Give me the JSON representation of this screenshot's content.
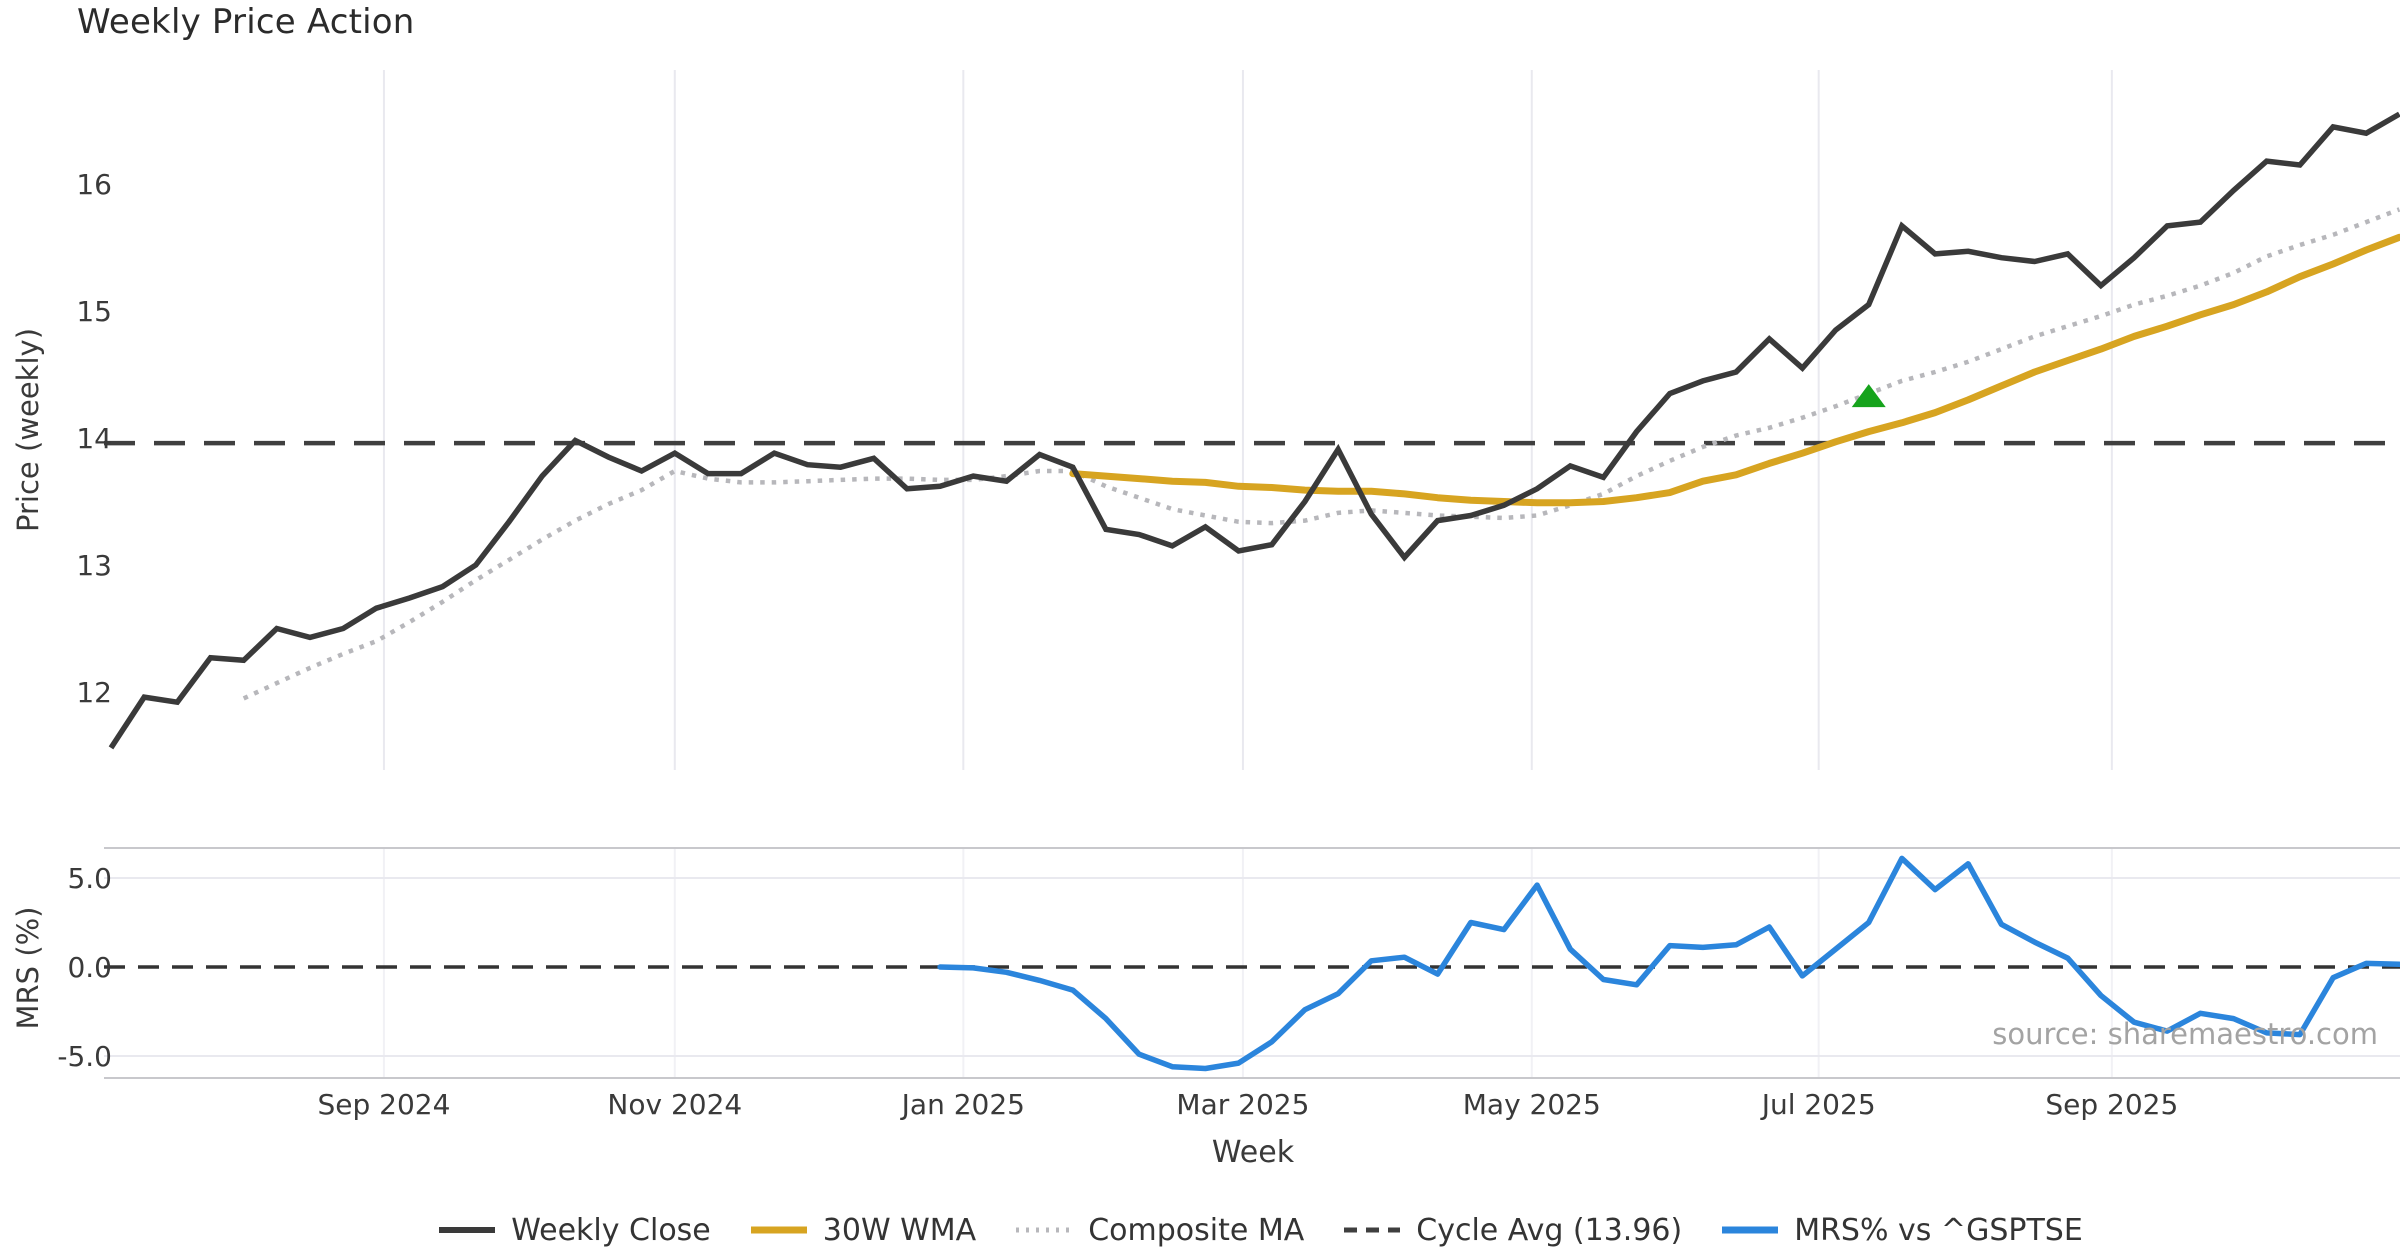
{
  "title": "Weekly Price Action",
  "source_note": "source: sharemaestro.com",
  "colors": {
    "weekly_close": "#3a3a3a",
    "wma_30w": "#d7a421",
    "composite_ma": "#b7b7bb",
    "cycle_avg": "#3f3f3f",
    "mrs": "#2b85dc",
    "signal_marker": "#16a31c",
    "grid": "#e9e9ef",
    "grid_faint": "#f1f1f5",
    "panel_border": "#c8c8cc",
    "tick_text": "#3a3a3a",
    "source_text": "#a3a3a3"
  },
  "axes": {
    "price_axis_label": "Price (weekly)",
    "mrs_axis_label": "MRS (%)",
    "x_axis_label": "Week",
    "price_ticks": [
      {
        "label": "16",
        "value": 16
      },
      {
        "label": "15",
        "value": 15
      },
      {
        "label": "14",
        "value": 14
      },
      {
        "label": "13",
        "value": 13
      },
      {
        "label": "12",
        "value": 12
      }
    ],
    "mrs_ticks": [
      {
        "label": "5.0",
        "value": 5
      },
      {
        "label": "0.0",
        "value": 0
      },
      {
        "label": "-5.0",
        "value": -5
      }
    ],
    "x_ticks": [
      {
        "label": "Sep 2024",
        "week": 8.23
      },
      {
        "label": "Nov 2024",
        "week": 17.0
      },
      {
        "label": "Jan 2025",
        "week": 25.7
      },
      {
        "label": "Mar 2025",
        "week": 34.13
      },
      {
        "label": "May 2025",
        "week": 42.84
      },
      {
        "label": "Jul 2025",
        "week": 51.49
      },
      {
        "label": "Sep 2025",
        "week": 60.33
      }
    ]
  },
  "legend": {
    "items": [
      {
        "label": "Weekly Close",
        "series": "weekly_close",
        "style": "solid"
      },
      {
        "label": "30W WMA",
        "series": "wma_30w",
        "style": "solid"
      },
      {
        "label": "Composite MA",
        "series": "composite_ma",
        "style": "dotted"
      },
      {
        "label": "Cycle Avg (13.96)",
        "series": "cycle_avg",
        "style": "dashed"
      },
      {
        "label": "MRS% vs ^GSPTSE",
        "series": "mrs",
        "style": "solid"
      }
    ]
  },
  "chart_data": {
    "type": "line",
    "x_unit": "week index (week 0 = first plotted week, ticks every 2 months)",
    "panels": [
      {
        "name": "price",
        "ylabel": "Price (weekly)",
        "ylim": [
          11.39,
          16.86
        ],
        "grid": "vertical-only",
        "cycle_avg": 13.96,
        "marker": {
          "shape": "triangle-up",
          "week": 53,
          "price": 14.33
        },
        "series": [
          {
            "name": "Weekly Close",
            "style": "solid",
            "start_week": 0,
            "values": [
              11.56,
              11.96,
              11.92,
              12.27,
              12.25,
              12.5,
              12.43,
              12.5,
              12.66,
              12.74,
              12.83,
              13.0,
              13.34,
              13.7,
              13.98,
              13.85,
              13.74,
              13.88,
              13.72,
              13.72,
              13.88,
              13.79,
              13.77,
              13.84,
              13.6,
              13.62,
              13.7,
              13.66,
              13.87,
              13.77,
              13.28,
              13.24,
              13.15,
              13.3,
              13.11,
              13.16,
              13.5,
              13.91,
              13.4,
              13.06,
              13.35,
              13.39,
              13.47,
              13.6,
              13.78,
              13.69,
              14.05,
              14.35,
              14.45,
              14.52,
              14.78,
              14.55,
              14.85,
              15.05,
              15.67,
              15.45,
              15.47,
              15.42,
              15.39,
              15.45,
              15.2,
              15.42,
              15.67,
              15.7,
              15.95,
              16.18,
              16.15,
              16.45,
              16.4,
              16.55
            ]
          },
          {
            "name": "30W WMA",
            "style": "solid",
            "start_week": 29,
            "values": [
              13.72,
              13.7,
              13.68,
              13.66,
              13.65,
              13.62,
              13.61,
              13.59,
              13.58,
              13.58,
              13.56,
              13.53,
              13.51,
              13.5,
              13.49,
              13.49,
              13.5,
              13.53,
              13.57,
              13.66,
              13.71,
              13.8,
              13.88,
              13.97,
              14.05,
              14.12,
              14.2,
              14.3,
              14.41,
              14.52,
              14.61,
              14.7,
              14.8,
              14.88,
              14.97,
              15.05,
              15.15,
              15.27,
              15.37,
              15.48,
              15.58
            ]
          },
          {
            "name": "Composite MA",
            "style": "dotted",
            "start_week": 4,
            "values": [
              11.95,
              12.07,
              12.19,
              12.3,
              12.4,
              12.55,
              12.71,
              12.88,
              13.04,
              13.2,
              13.35,
              13.48,
              13.59,
              13.74,
              13.68,
              13.65,
              13.65,
              13.66,
              13.67,
              13.68,
              13.68,
              13.67,
              13.67,
              13.7,
              13.74,
              13.74,
              13.62,
              13.53,
              13.44,
              13.39,
              13.34,
              13.33,
              13.35,
              13.41,
              13.43,
              13.41,
              13.39,
              13.38,
              13.37,
              13.39,
              13.47,
              13.56,
              13.7,
              13.82,
              13.93,
              14.02,
              14.08,
              14.16,
              14.25,
              14.35,
              14.45,
              14.52,
              14.6,
              14.7,
              14.8,
              14.88,
              14.96,
              15.05,
              15.12,
              15.2,
              15.3,
              15.43,
              15.52,
              15.6,
              15.7,
              15.8
            ]
          }
        ]
      },
      {
        "name": "mrs",
        "ylabel": "MRS (%)",
        "ylim": [
          -6.2,
          6.7
        ],
        "zero_line": 0,
        "series": [
          {
            "name": "MRS% vs ^GSPTSE",
            "style": "solid",
            "start_week": 25,
            "values": [
              0.0,
              -0.05,
              -0.3,
              -0.75,
              -1.3,
              -2.9,
              -4.9,
              -5.6,
              -5.7,
              -5.4,
              -4.2,
              -2.4,
              -1.5,
              0.35,
              0.55,
              -0.4,
              2.5,
              2.1,
              4.6,
              1.0,
              -0.7,
              -1.0,
              1.2,
              1.1,
              1.25,
              2.25,
              -0.5,
              1.0,
              2.5,
              6.1,
              4.35,
              5.8,
              2.4,
              1.4,
              0.5,
              -1.6,
              -3.1,
              -3.6,
              -2.6,
              -2.9,
              -3.7,
              -3.8,
              -0.6,
              0.2,
              0.15
            ]
          }
        ]
      }
    ]
  }
}
